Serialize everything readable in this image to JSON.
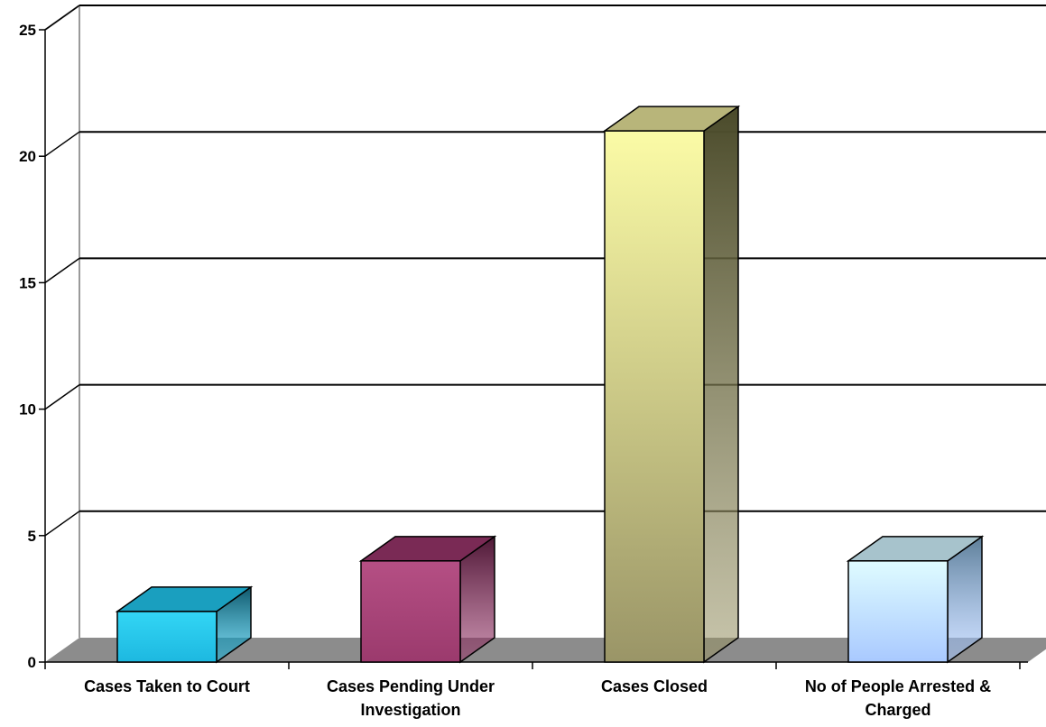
{
  "chart_data": {
    "type": "bar",
    "categories": [
      [
        "Cases Taken to Court"
      ],
      [
        "Cases Pending Under",
        "Investigation"
      ],
      [
        "Cases Closed"
      ],
      [
        "No of People Arrested &",
        "Charged"
      ]
    ],
    "values": [
      2,
      4,
      21,
      4
    ],
    "ylim": [
      0,
      25
    ],
    "yticks": [
      "0",
      "5",
      "10",
      "15",
      "20",
      "25"
    ],
    "grid": true,
    "legend": "none",
    "colors": {
      "bars": [
        {
          "front_top": "#33d6f5",
          "front_bottom": "#1db8e0",
          "side": "#10586b",
          "top": "#1a9fbf"
        },
        {
          "front_top": "#b54f84",
          "front_bottom": "#9b3a6d",
          "side": "#4e1836",
          "top": "#7a2a55"
        },
        {
          "front_top": "#fbfba6",
          "front_bottom": "#9a9567",
          "side": "#4a4a2a",
          "top": "#b8b57a"
        },
        {
          "front_top": "#dffcff",
          "front_bottom": "#a9c9ff",
          "side": "#5e7f99",
          "top": "#a7c3cc"
        }
      ],
      "floor": "#8c8c8c",
      "grid": "#000000",
      "wall_edge": "#9a9a9a"
    }
  }
}
